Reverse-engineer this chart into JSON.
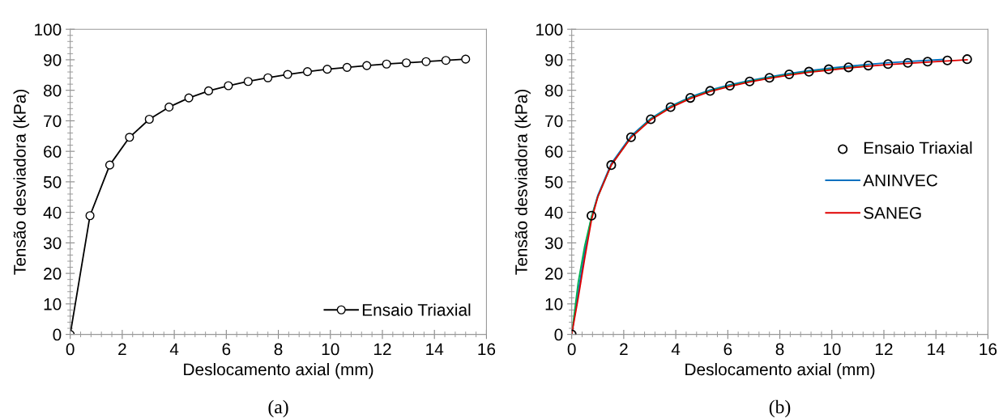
{
  "chart_data": [
    {
      "type": "line",
      "xlabel": "Deslocamento axial (mm)",
      "ylabel": "Tensão desviadora (kPa)",
      "annotations": [
        "(a)"
      ],
      "xlim": [
        0,
        16
      ],
      "xticks": [
        0,
        2,
        4,
        6,
        8,
        10,
        12,
        14,
        16
      ],
      "ylim": [
        0,
        100
      ],
      "yticks": [
        0,
        10,
        20,
        30,
        40,
        50,
        60,
        70,
        80,
        90,
        100
      ],
      "grid": false,
      "legend": "bottom right",
      "marker": "circle",
      "series": [
        {
          "name": "Ensaio Triaxial",
          "color": "#000000",
          "x": [
            0,
            0.76,
            1.52,
            2.28,
            3.04,
            3.8,
            4.56,
            5.32,
            6.08,
            6.84,
            7.6,
            8.36,
            9.12,
            9.88,
            10.64,
            11.4,
            12.16,
            12.92,
            13.68,
            14.44,
            15.2
          ],
          "values": [
            0,
            38.9,
            55.5,
            64.6,
            70.5,
            74.5,
            77.5,
            79.8,
            81.5,
            82.9,
            84.1,
            85.2,
            86.1,
            86.9,
            87.5,
            88.1,
            88.6,
            89.0,
            89.4,
            89.8,
            90.2
          ]
        }
      ]
    },
    {
      "type": "line",
      "xlabel": "Deslocamento axial (mm)",
      "ylabel": "Tensão desviadora (kPa)",
      "annotations": [
        "(b)"
      ],
      "xlim": [
        0,
        16
      ],
      "xticks": [
        0,
        2,
        4,
        6,
        8,
        10,
        12,
        14,
        16
      ],
      "ylim": [
        0,
        100
      ],
      "yticks": [
        0,
        10,
        20,
        30,
        40,
        50,
        60,
        70,
        80,
        90,
        100
      ],
      "grid": false,
      "legend": "right",
      "series": [
        {
          "name": "Ensaio Triaxial",
          "type": "scatter",
          "marker": "circle",
          "color": "#000000",
          "x": [
            0,
            0.76,
            1.52,
            2.28,
            3.04,
            3.8,
            4.56,
            5.32,
            6.08,
            6.84,
            7.6,
            8.36,
            9.12,
            9.88,
            10.64,
            11.4,
            12.16,
            12.92,
            13.68,
            14.44,
            15.2
          ],
          "values": [
            0,
            38.9,
            55.5,
            64.6,
            70.5,
            74.5,
            77.5,
            79.8,
            81.5,
            82.9,
            84.1,
            85.2,
            86.1,
            86.9,
            87.5,
            88.1,
            88.6,
            89.0,
            89.4,
            89.8,
            90.2
          ]
        },
        {
          "name": "ANINVEC",
          "color": "#0070c0",
          "x": [
            0,
            0.25,
            0.5,
            0.76,
            1.0,
            1.52,
            2.28,
            3.04,
            3.8,
            4.56,
            5.32,
            6.08,
            6.84,
            7.6,
            8.36,
            9.12,
            9.88,
            10.64,
            11.4,
            12.16,
            12.92,
            13.68,
            14.3
          ],
          "values": [
            0,
            14,
            27,
            38.5,
            45.5,
            56,
            65,
            70.8,
            74.8,
            77.8,
            80.1,
            81.8,
            83.2,
            84.4,
            85.5,
            86.4,
            87.2,
            87.9,
            88.5,
            89.0,
            89.4,
            89.8,
            90.1
          ]
        },
        {
          "color": "#00b050",
          "x": [
            0,
            0.25,
            0.5,
            0.76,
            1.0,
            1.52,
            2.28,
            3.04,
            3.8,
            4.56,
            5.32,
            6.08,
            6.84,
            7.6,
            8.36,
            9.12,
            9.88,
            10.64,
            11.4
          ],
          "values": [
            0,
            17,
            29,
            38.5,
            45,
            55.5,
            64.6,
            70.5,
            74.5,
            77.5,
            79.8,
            81.5,
            82.9,
            84.1,
            85.2,
            86.1,
            86.8,
            87.4,
            88.0
          ]
        },
        {
          "name": "SANEG",
          "color": "#e00000",
          "x": [
            0,
            0.25,
            0.5,
            0.76,
            1.0,
            1.52,
            2.28,
            3.04,
            3.8,
            4.56,
            5.32,
            6.08,
            6.84,
            7.6,
            8.36,
            9.12,
            9.88,
            10.64,
            11.4,
            12.16,
            12.92,
            13.68,
            14.44,
            15.2
          ],
          "values": [
            0,
            12,
            25,
            37.5,
            45,
            55.5,
            64.5,
            70.3,
            74.3,
            77.3,
            79.6,
            81.3,
            82.7,
            83.9,
            85.0,
            85.9,
            86.6,
            87.3,
            87.9,
            88.4,
            88.8,
            89.2,
            89.6,
            90.0
          ]
        }
      ]
    }
  ]
}
